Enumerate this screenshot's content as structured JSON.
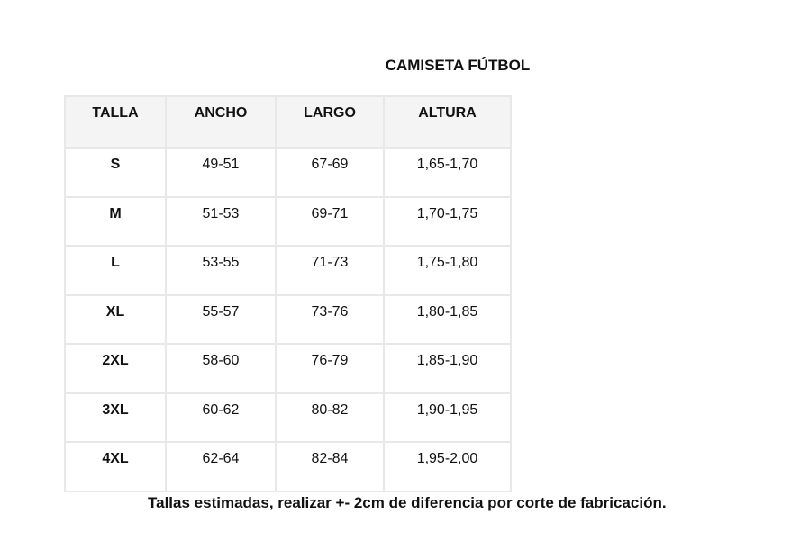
{
  "title": "CAMISETA FÚTBOL",
  "table": {
    "headers": [
      "TALLA",
      "ANCHO",
      "LARGO",
      "ALTURA"
    ],
    "rows": [
      [
        "S",
        "49-51",
        "67-69",
        "1,65-1,70"
      ],
      [
        "M",
        "51-53",
        "69-71",
        "1,70-1,75"
      ],
      [
        "L",
        "53-55",
        "71-73",
        "1,75-1,80"
      ],
      [
        "XL",
        "55-57",
        "73-76",
        "1,80-1,85"
      ],
      [
        "2XL",
        "58-60",
        "76-79",
        "1,85-1,90"
      ],
      [
        "3XL",
        "60-62",
        "80-82",
        "1,90-1,95"
      ],
      [
        "4XL",
        "62-64",
        "82-84",
        "1,95-2,00"
      ]
    ]
  },
  "note": "Tallas estimadas, realizar +- 2cm de diferencia por corte de fabricación."
}
